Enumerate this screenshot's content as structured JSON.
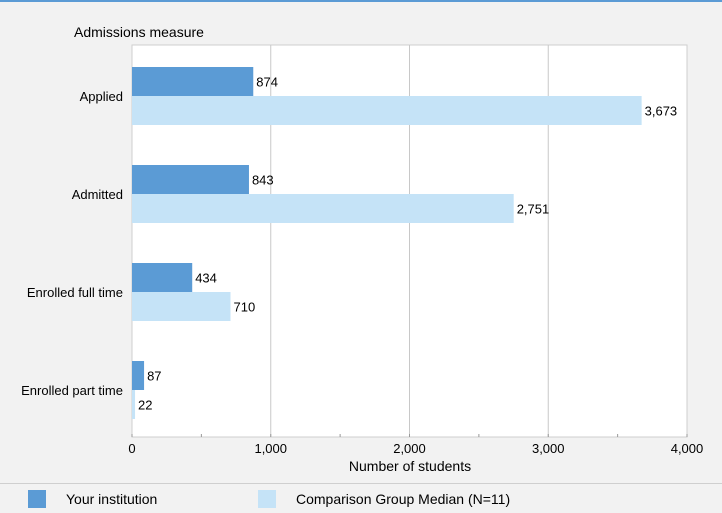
{
  "chart_data": {
    "type": "bar",
    "orientation": "horizontal",
    "categories": [
      "Applied",
      "Admitted",
      "Enrolled full time",
      "Enrolled part time"
    ],
    "series": [
      {
        "name": "Your institution",
        "values": [
          874,
          843,
          434,
          87
        ],
        "labels": [
          "874",
          "843",
          "434",
          "87"
        ],
        "color": "#5b9bd5"
      },
      {
        "name": "Comparison Group Median (N=11)",
        "values": [
          3673,
          2751,
          710,
          22
        ],
        "labels": [
          "3,673",
          "2,751",
          "710",
          "22"
        ],
        "color": "#c5e3f7"
      }
    ],
    "ytitle": "Admissions measure",
    "xlabel": "Number of students",
    "xlim": [
      0,
      4000
    ],
    "xticks": [
      0,
      1000,
      2000,
      3000,
      4000
    ],
    "xtick_labels": [
      "0",
      "1,000",
      "2,000",
      "3,000",
      "4,000"
    ],
    "grid": true,
    "legend_position": "bottom"
  }
}
